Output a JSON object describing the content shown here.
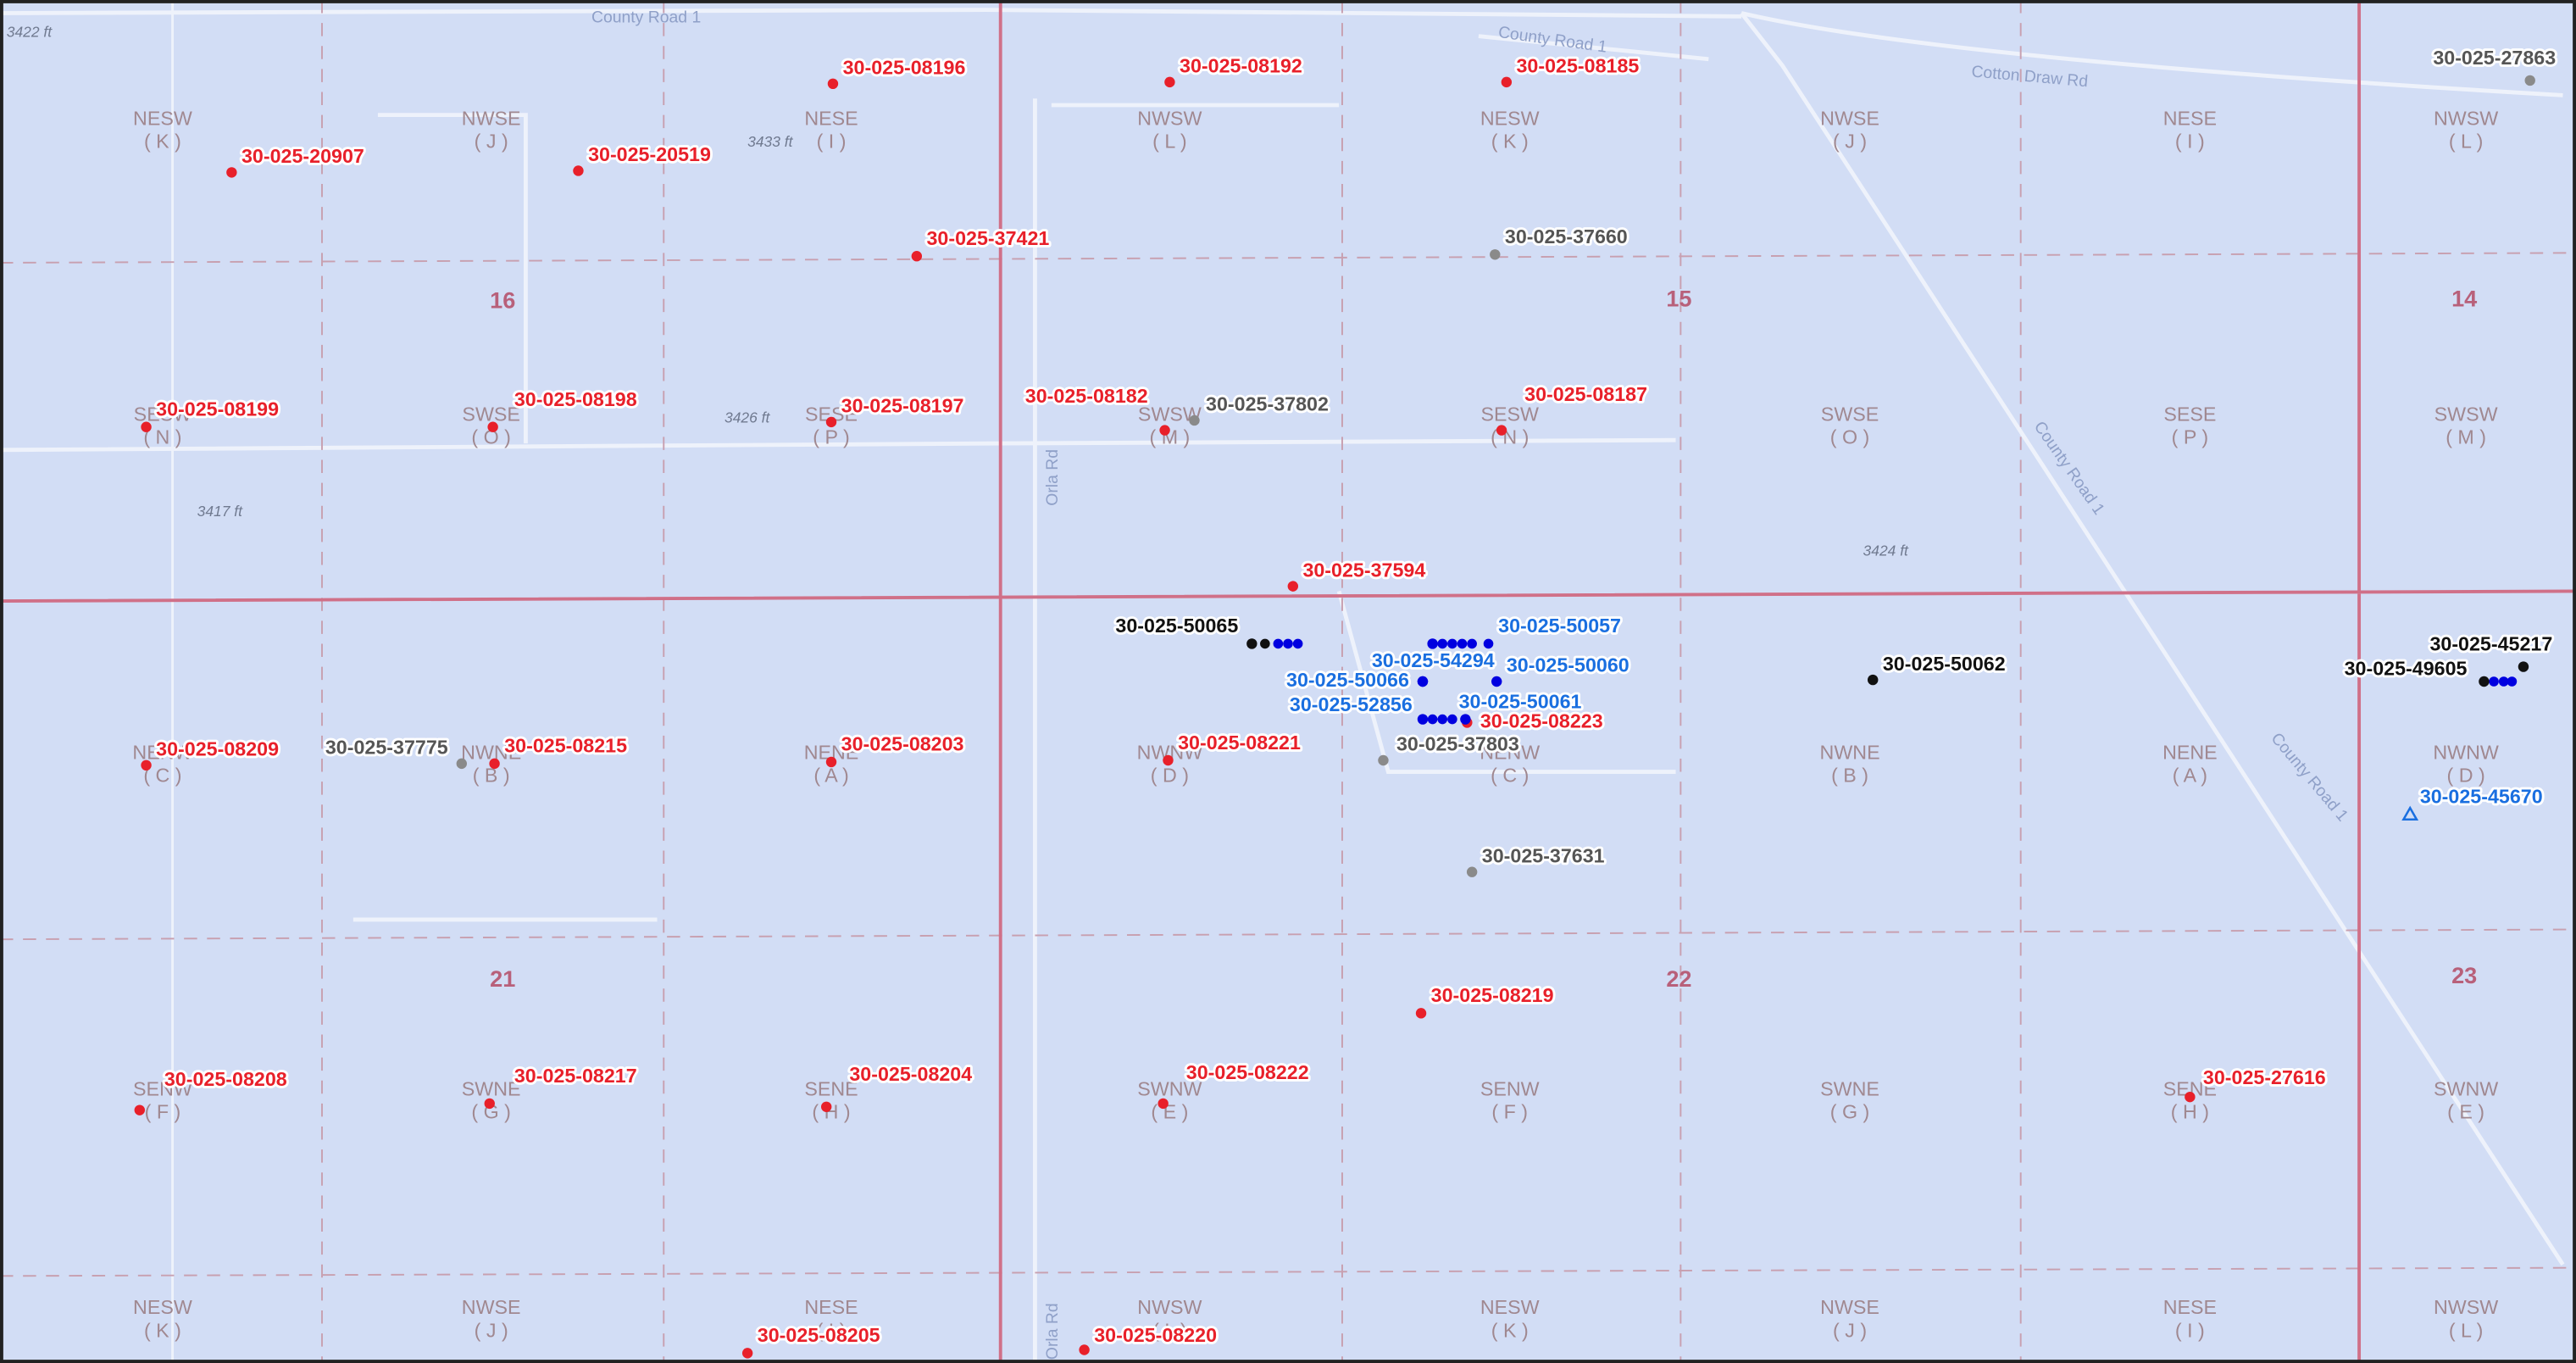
{
  "map": {
    "roads": [
      "County Road 1",
      "County Road 1",
      "Cotton Draw Rd",
      "Orla Rd",
      "Orla Rd",
      "County Road 1",
      "County Road 1"
    ],
    "elevations": [
      "3422 ft",
      "3433 ft",
      "3426 ft",
      "3417 ft",
      "3424 ft"
    ],
    "sections": [
      "16",
      "15",
      "14",
      "21",
      "22",
      "23"
    ],
    "quarter_quarters": [
      {
        "name": "NESW",
        "letter": "( K )"
      },
      {
        "name": "NWSE",
        "letter": "( J )"
      },
      {
        "name": "NESE",
        "letter": "( I )"
      },
      {
        "name": "NWSW",
        "letter": "( L )"
      },
      {
        "name": "NESW",
        "letter": "( K )"
      },
      {
        "name": "NWSE",
        "letter": "( J )"
      },
      {
        "name": "NESE",
        "letter": "( I )"
      },
      {
        "name": "NWSW",
        "letter": "( L )"
      },
      {
        "name": "SESW",
        "letter": "( N )"
      },
      {
        "name": "SWSE",
        "letter": "( O )"
      },
      {
        "name": "SESE",
        "letter": "( P )"
      },
      {
        "name": "SWSW",
        "letter": "( M )"
      },
      {
        "name": "SESW",
        "letter": "( N )"
      },
      {
        "name": "SWSE",
        "letter": "( O )"
      },
      {
        "name": "SESE",
        "letter": "( P )"
      },
      {
        "name": "SWSW",
        "letter": "( M )"
      },
      {
        "name": "NENW",
        "letter": "( C )"
      },
      {
        "name": "NWNE",
        "letter": "( B )"
      },
      {
        "name": "NENE",
        "letter": "( A )"
      },
      {
        "name": "NWNW",
        "letter": "( D )"
      },
      {
        "name": "NENW",
        "letter": "( C )"
      },
      {
        "name": "NWNE",
        "letter": "( B )"
      },
      {
        "name": "NENE",
        "letter": "( A )"
      },
      {
        "name": "NWNW",
        "letter": "( D )"
      },
      {
        "name": "SENW",
        "letter": "( F )"
      },
      {
        "name": "SWNE",
        "letter": "( G )"
      },
      {
        "name": "SENE",
        "letter": "( H )"
      },
      {
        "name": "SWNW",
        "letter": "( E )"
      },
      {
        "name": "SENW",
        "letter": "( F )"
      },
      {
        "name": "SWNE",
        "letter": "( G )"
      },
      {
        "name": "SENE",
        "letter": "( H )"
      },
      {
        "name": "SWNW",
        "letter": "( E )"
      },
      {
        "name": "NESW",
        "letter": "( K )"
      },
      {
        "name": "NWSE",
        "letter": "( J )"
      },
      {
        "name": "NESE",
        "letter": "( I )"
      },
      {
        "name": "NWSW",
        "letter": "( L )"
      },
      {
        "name": "NESW",
        "letter": "( K )"
      },
      {
        "name": "NWSE",
        "letter": "( J )"
      },
      {
        "name": "NESE",
        "letter": "( I )"
      },
      {
        "name": "NWSW",
        "letter": "( L )"
      }
    ],
    "wells": [
      {
        "api": "30-025-08196",
        "color": "#e8202a"
      },
      {
        "api": "30-025-08192",
        "color": "#e8202a"
      },
      {
        "api": "30-025-08185",
        "color": "#e8202a"
      },
      {
        "api": "30-025-20907",
        "color": "#e8202a"
      },
      {
        "api": "30-025-20519",
        "color": "#e8202a"
      },
      {
        "api": "30-025-37421",
        "color": "#e8202a"
      },
      {
        "api": "30-025-08199",
        "color": "#e8202a"
      },
      {
        "api": "30-025-08198",
        "color": "#e8202a"
      },
      {
        "api": "30-025-08197",
        "color": "#e8202a"
      },
      {
        "api": "30-025-08182",
        "color": "#e8202a"
      },
      {
        "api": "30-025-08187",
        "color": "#e8202a"
      },
      {
        "api": "30-025-37594",
        "color": "#e8202a"
      },
      {
        "api": "30-025-08209",
        "color": "#e8202a"
      },
      {
        "api": "30-025-08215",
        "color": "#e8202a"
      },
      {
        "api": "30-025-08203",
        "color": "#e8202a"
      },
      {
        "api": "30-025-08221",
        "color": "#e8202a"
      },
      {
        "api": "30-025-08223",
        "color": "#e8202a"
      },
      {
        "api": "30-025-08219",
        "color": "#e8202a"
      },
      {
        "api": "30-025-08208",
        "color": "#e8202a"
      },
      {
        "api": "30-025-08217",
        "color": "#e8202a"
      },
      {
        "api": "30-025-08204",
        "color": "#e8202a"
      },
      {
        "api": "30-025-08222",
        "color": "#e8202a"
      },
      {
        "api": "30-025-27616",
        "color": "#e8202a"
      },
      {
        "api": "30-025-08205",
        "color": "#e8202a"
      },
      {
        "api": "30-025-08220",
        "color": "#e8202a"
      },
      {
        "api": "30-025-37660",
        "color": "#8a8a8a"
      },
      {
        "api": "30-025-37802",
        "color": "#8a8a8a"
      },
      {
        "api": "30-025-37775",
        "color": "#8a8a8a"
      },
      {
        "api": "30-025-37803",
        "color": "#8a8a8a"
      },
      {
        "api": "30-025-37631",
        "color": "#8a8a8a"
      },
      {
        "api": "30-025-27863",
        "color": "#8a8a8a"
      },
      {
        "api": "30-025-50065",
        "color": "#111111"
      },
      {
        "api": "30-025-50062",
        "color": "#111111"
      },
      {
        "api": "30-025-45217",
        "color": "#111111"
      },
      {
        "api": "30-025-49605",
        "color": "#111111"
      },
      {
        "api": "30-025-50057",
        "color": "#1a6fe0"
      },
      {
        "api": "30-025-54294",
        "color": "#1a6fe0"
      },
      {
        "api": "30-025-50060",
        "color": "#1a6fe0"
      },
      {
        "api": "30-025-50066",
        "color": "#1a6fe0"
      },
      {
        "api": "30-025-50061",
        "color": "#1a6fe0"
      },
      {
        "api": "30-025-52856",
        "color": "#1a6fe0"
      },
      {
        "api": "30-025-45670",
        "color": "#1a6fe0",
        "marker": "triangle"
      }
    ]
  }
}
